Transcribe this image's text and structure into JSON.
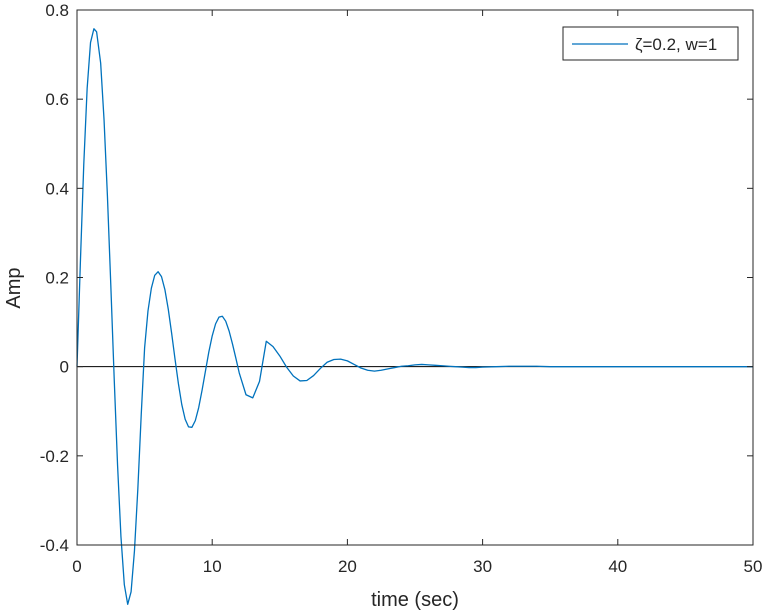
{
  "chart_data": {
    "type": "line",
    "title": "",
    "xlabel": "time (sec)",
    "ylabel": "Amp",
    "xlim": [
      0,
      50
    ],
    "ylim": [
      -0.4,
      0.8
    ],
    "xticks": [
      0,
      10,
      20,
      30,
      40,
      50
    ],
    "yticks": [
      -0.4,
      -0.2,
      0,
      0.2,
      0.4,
      0.6,
      0.8
    ],
    "xtick_labels": [
      "0",
      "10",
      "20",
      "30",
      "40",
      "50"
    ],
    "ytick_labels": [
      "-0.4",
      "-0.2",
      "0",
      "0.2",
      "0.4",
      "0.6",
      "0.8"
    ],
    "grid": false,
    "box": true,
    "reference_line": {
      "y": 0,
      "color": "#000000"
    },
    "legend": {
      "location": "top-right",
      "entries": [
        "ζ=0.2, w=1"
      ]
    },
    "series": [
      {
        "name": "ζ=0.2, w=1",
        "color": "#0072BD",
        "x": [
          0,
          0.25,
          0.5,
          0.75,
          1,
          1.25,
          1.45,
          1.75,
          2,
          2.25,
          2.5,
          2.75,
          3,
          3.25,
          3.5,
          3.75,
          4,
          4.25,
          4.5,
          4.75,
          5,
          5.25,
          5.5,
          5.75,
          6,
          6.25,
          6.5,
          6.75,
          7,
          7.25,
          7.5,
          7.75,
          8,
          8.25,
          8.5,
          8.75,
          9,
          9.25,
          9.5,
          9.75,
          10,
          10.25,
          10.5,
          10.75,
          11,
          11.25,
          11.5,
          11.75,
          12,
          12.5,
          13,
          13.5,
          14,
          14.5,
          15,
          15.5,
          16,
          16.5,
          17,
          17.5,
          18,
          18.5,
          19,
          19.5,
          20,
          20.5,
          21,
          21.5,
          22,
          22.5,
          23,
          23.5,
          24,
          24.5,
          25,
          25.5,
          26,
          26.5,
          27,
          27.5,
          28,
          28.5,
          29,
          29.5,
          30,
          31,
          32,
          33,
          34,
          35,
          36,
          38,
          40,
          42,
          44,
          46,
          48,
          50
        ],
        "y": [
          0,
          0.234,
          0.453,
          0.624,
          0.727,
          0.758,
          0.751,
          0.681,
          0.554,
          0.383,
          0.183,
          -0.026,
          -0.221,
          -0.381,
          -0.489,
          -0.533,
          -0.505,
          -0.413,
          -0.274,
          -0.108,
          0.042,
          0.125,
          0.176,
          0.205,
          0.213,
          0.202,
          0.173,
          0.129,
          0.075,
          0.017,
          -0.038,
          -0.085,
          -0.118,
          -0.135,
          -0.136,
          -0.121,
          -0.092,
          -0.053,
          -0.01,
          0.033,
          0.069,
          0.096,
          0.111,
          0.113,
          0.102,
          0.08,
          0.051,
          0.019,
          -0.014,
          -0.063,
          -0.07,
          -0.033,
          0.057,
          0.045,
          0.024,
          -0.001,
          -0.021,
          -0.032,
          -0.031,
          -0.02,
          -0.004,
          0.01,
          0.016,
          0.017,
          0.013,
          0.005,
          -0.003,
          -0.008,
          -0.01,
          -0.008,
          -0.005,
          -0.002,
          0.001,
          0.002,
          0.004,
          0.005,
          0.004,
          0.003,
          0.002,
          0.001,
          0.0,
          -0.001,
          -0.002,
          -0.002,
          -0.001,
          0.0,
          0.001,
          0.001,
          0.001,
          0.0,
          0.0,
          0.0,
          0.0,
          0.0,
          0.0,
          0.0,
          0.0,
          0.0
        ]
      }
    ]
  }
}
